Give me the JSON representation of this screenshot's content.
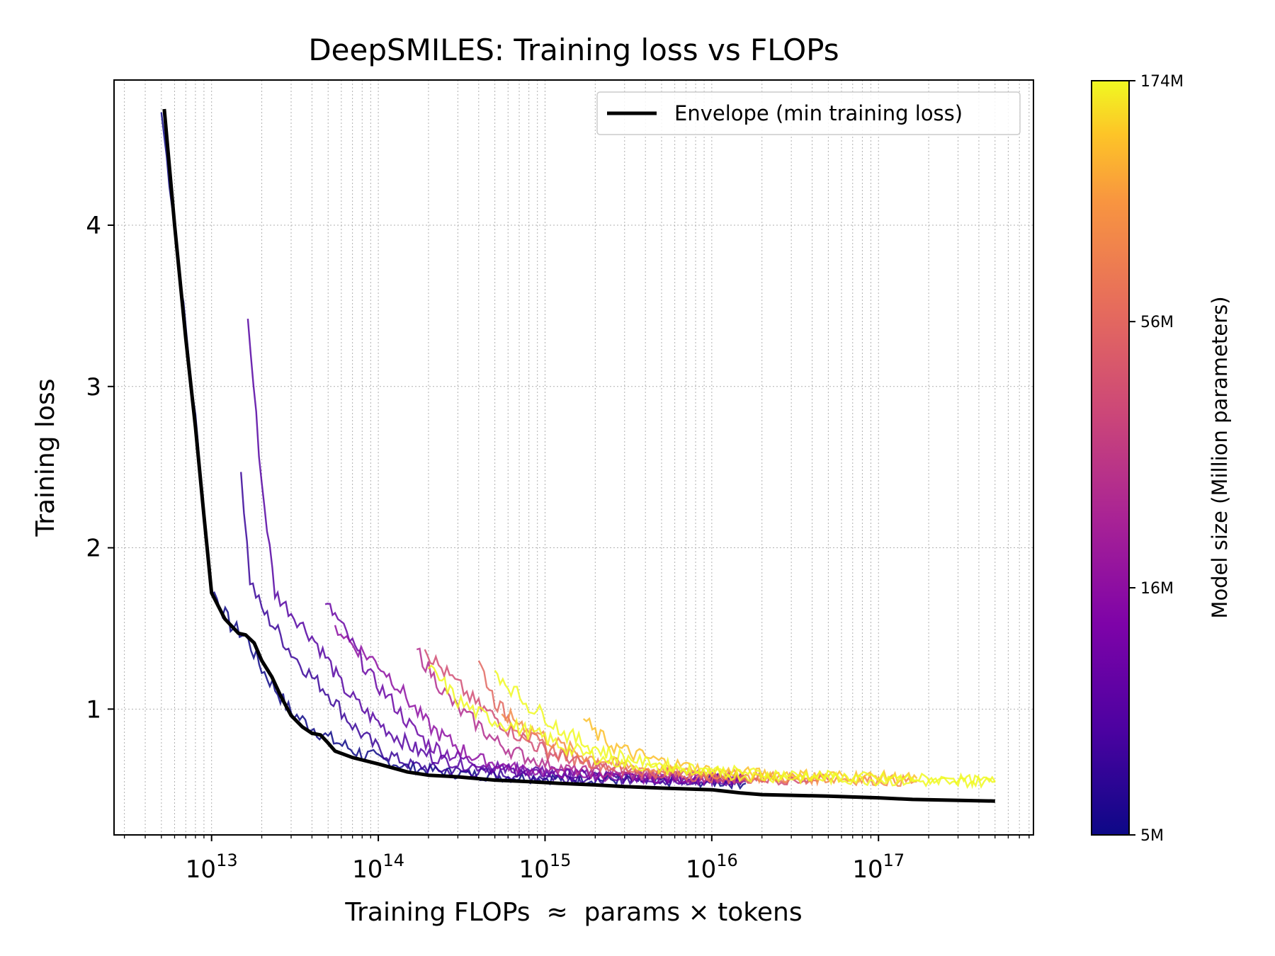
{
  "chart_data": {
    "type": "line",
    "title": "DeepSMILES: Training loss vs FLOPs",
    "xlabel": "Training FLOPs  ≈  params × tokens",
    "ylabel": "Training loss",
    "xscale": "log",
    "xlim": [
      2600000000000.0,
      8.5e+17
    ],
    "ylim": [
      0.22,
      4.9
    ],
    "x_ticks": [
      {
        "value": 10000000000000.0,
        "base": "10",
        "exp": "13"
      },
      {
        "value": 100000000000000.0,
        "base": "10",
        "exp": "14"
      },
      {
        "value": 1000000000000000.0,
        "base": "10",
        "exp": "15"
      },
      {
        "value": 1e+16,
        "base": "10",
        "exp": "16"
      },
      {
        "value": 1e+17,
        "base": "10",
        "exp": "17"
      }
    ],
    "y_ticks": [
      {
        "value": 1,
        "label": "1"
      },
      {
        "value": 2,
        "label": "2"
      },
      {
        "value": 3,
        "label": "3"
      },
      {
        "value": 4,
        "label": "4"
      }
    ],
    "grid": true,
    "legend": {
      "position": "top-right",
      "entries": [
        {
          "label": "Envelope (min training loss)",
          "color": "#000000"
        }
      ]
    },
    "colorbar": {
      "label": "Model size (Million parameters)",
      "colormap": "plasma",
      "scale": "log",
      "range": [
        5,
        174
      ],
      "ticks": [
        {
          "value": 5,
          "label": "5M"
        },
        {
          "value": 16,
          "label": "16M"
        },
        {
          "value": 56,
          "label": "56M"
        },
        {
          "value": 174,
          "label": "174M"
        }
      ]
    },
    "envelope": {
      "name": "Envelope (min training loss)",
      "color": "#000000",
      "x": [
        5200000000000.0,
        6000000000000.0,
        7000000000000.0,
        8000000000000.0,
        9000000000000.0,
        10000000000000.0,
        12000000000000.0,
        14500000000000.0,
        16000000000000.0,
        18000000000000.0,
        20000000000000.0,
        23000000000000.0,
        26000000000000.0,
        30000000000000.0,
        35000000000000.0,
        40000000000000.0,
        45000000000000.0,
        50000000000000.0,
        55000000000000.0,
        70000000000000.0,
        100000000000000.0,
        150000000000000.0,
        200000000000000.0,
        300000000000000.0,
        500000000000000.0,
        800000000000000.0,
        1200000000000000.0,
        2000000000000000.0,
        3000000000000000.0,
        5000000000000000.0,
        1e+16,
        1.5e+16,
        2e+16,
        5e+16,
        1e+17,
        1.6e+17,
        5e+17
      ],
      "y": [
        4.72,
        4.0,
        3.3,
        2.75,
        2.2,
        1.72,
        1.56,
        1.47,
        1.46,
        1.41,
        1.3,
        1.2,
        1.08,
        0.96,
        0.89,
        0.85,
        0.84,
        0.79,
        0.74,
        0.7,
        0.66,
        0.61,
        0.59,
        0.58,
        0.56,
        0.55,
        0.54,
        0.53,
        0.52,
        0.51,
        0.5,
        0.48,
        0.47,
        0.46,
        0.45,
        0.44,
        0.43
      ]
    },
    "series": [
      {
        "model_size_m": 5,
        "x": [
          5000000000000.0,
          6000000000000.0,
          8000000000000.0,
          10000000000000.0,
          13000000000000.0,
          16000000000000.0,
          20000000000000.0,
          30000000000000.0,
          50000000000000.0,
          80000000000000.0,
          150000000000000.0,
          300000000000000.0,
          600000000000000.0,
          1200000000000000.0,
          3000000000000000.0,
          6000000000000000.0,
          1e+16,
          1.6e+16
        ],
        "y": [
          4.7,
          4.0,
          2.8,
          1.75,
          1.52,
          1.45,
          1.25,
          0.98,
          0.82,
          0.72,
          0.64,
          0.6,
          0.58,
          0.57,
          0.56,
          0.55,
          0.55,
          0.54
        ]
      },
      {
        "model_size_m": 7,
        "x": [
          15000000000000.0,
          17000000000000.0,
          20000000000000.0,
          25000000000000.0,
          30000000000000.0,
          40000000000000.0,
          50000000000000.0,
          70000000000000.0,
          100000000000000.0,
          150000000000000.0,
          250000000000000.0,
          500000000000000.0,
          1000000000000000.0,
          3000000000000000.0,
          8000000000000000.0,
          1.6e+16
        ],
        "y": [
          2.47,
          1.8,
          1.62,
          1.48,
          1.35,
          1.2,
          1.1,
          0.9,
          0.75,
          0.66,
          0.62,
          0.6,
          0.58,
          0.57,
          0.56,
          0.55
        ]
      },
      {
        "model_size_m": 9,
        "x": [
          16500000000000.0,
          20000000000000.0,
          24000000000000.0,
          30000000000000.0,
          40000000000000.0,
          50000000000000.0,
          60000000000000.0,
          80000000000000.0,
          120000000000000.0,
          180000000000000.0,
          300000000000000.0,
          600000000000000.0,
          1500000000000000.0,
          4000000000000000.0,
          1.6e+16
        ],
        "y": [
          3.42,
          2.4,
          1.72,
          1.6,
          1.45,
          1.3,
          1.15,
          1.0,
          0.85,
          0.73,
          0.66,
          0.62,
          0.59,
          0.57,
          0.56
        ]
      },
      {
        "model_size_m": 11,
        "x": [
          48000000000000.0,
          55000000000000.0,
          70000000000000.0,
          90000000000000.0,
          120000000000000.0,
          160000000000000.0,
          200000000000000.0,
          300000000000000.0,
          500000000000000.0,
          1000000000000000.0,
          2000000000000000.0,
          5000000000000000.0,
          1.6e+16
        ],
        "y": [
          1.65,
          1.58,
          1.4,
          1.2,
          1.05,
          0.88,
          0.78,
          0.7,
          0.64,
          0.61,
          0.59,
          0.57,
          0.56
        ]
      },
      {
        "model_size_m": 16,
        "x": [
          55000000000000.0,
          70000000000000.0,
          100000000000000.0,
          130000000000000.0,
          160000000000000.0,
          200000000000000.0,
          250000000000000.0,
          350000000000000.0,
          500000000000000.0,
          800000000000000.0,
          1500000000000000.0,
          3000000000000000.0,
          8000000000000000.0,
          1.6e+16
        ],
        "y": [
          1.52,
          1.4,
          1.28,
          1.15,
          1.02,
          0.9,
          0.82,
          0.72,
          0.66,
          0.62,
          0.6,
          0.58,
          0.57,
          0.56
        ]
      },
      {
        "model_size_m": 25,
        "x": [
          170000000000000.0,
          200000000000000.0,
          250000000000000.0,
          300000000000000.0,
          400000000000000.0,
          500000000000000.0,
          700000000000000.0,
          1000000000000000.0,
          1500000000000000.0,
          3000000000000000.0,
          8000000000000000.0,
          1.6e+16
        ],
        "y": [
          1.37,
          1.25,
          1.1,
          1.0,
          0.9,
          0.8,
          0.72,
          0.66,
          0.62,
          0.59,
          0.58,
          0.57
        ]
      },
      {
        "model_size_m": 40,
        "x": [
          190000000000000.0,
          230000000000000.0,
          300000000000000.0,
          400000000000000.0,
          500000000000000.0,
          600000000000000.0,
          800000000000000.0,
          1000000000000000.0,
          1500000000000000.0,
          2500000000000000.0,
          5000000000000000.0,
          1e+16,
          2e+16,
          4e+16
        ],
        "y": [
          1.37,
          1.27,
          1.15,
          1.02,
          0.95,
          0.88,
          0.8,
          0.74,
          0.68,
          0.63,
          0.6,
          0.58,
          0.57,
          0.56
        ]
      },
      {
        "model_size_m": 56,
        "x": [
          400000000000000.0,
          500000000000000.0,
          600000000000000.0,
          800000000000000.0,
          1000000000000000.0,
          1500000000000000.0,
          2000000000000000.0,
          3000000000000000.0,
          5000000000000000.0,
          1e+16,
          2e+16,
          5e+16
        ],
        "y": [
          1.3,
          1.05,
          0.95,
          0.82,
          0.76,
          0.7,
          0.66,
          0.63,
          0.6,
          0.58,
          0.57,
          0.56
        ]
      },
      {
        "model_size_m": 85,
        "x": [
          550000000000000.0,
          700000000000000.0,
          900000000000000.0,
          1200000000000000.0,
          1600000000000000.0,
          2500000000000000.0,
          4000000000000000.0,
          8000000000000000.0,
          2e+16,
          5e+16,
          1e+17,
          1.7e+17
        ],
        "y": [
          0.97,
          0.92,
          0.85,
          0.78,
          0.72,
          0.67,
          0.63,
          0.6,
          0.58,
          0.57,
          0.56,
          0.55
        ]
      },
      {
        "model_size_m": 130,
        "x": [
          1700000000000000.0,
          2000000000000000.0,
          2500000000000000.0,
          3000000000000000.0,
          4000000000000000.0,
          6000000000000000.0,
          1e+16,
          2e+16,
          5e+16,
          1e+17,
          1.7e+17
        ],
        "y": [
          0.94,
          0.85,
          0.78,
          0.74,
          0.7,
          0.66,
          0.62,
          0.6,
          0.59,
          0.58,
          0.57
        ]
      },
      {
        "model_size_m": 174,
        "x": [
          200000000000000.0,
          250000000000000.0,
          300000000000000.0,
          400000000000000.0,
          500000000000000.0,
          700000000000000.0,
          1000000000000000.0,
          1500000000000000.0,
          2000000000000000.0,
          3000000000000000.0,
          5000000000000000.0,
          1e+16,
          2e+16,
          5e+16,
          1e+17,
          2e+17,
          5e+17
        ],
        "y": [
          1.25,
          1.15,
          1.05,
          0.97,
          0.93,
          0.88,
          0.82,
          0.74,
          0.7,
          0.66,
          0.63,
          0.6,
          0.58,
          0.57,
          0.56,
          0.55,
          0.55
        ]
      },
      {
        "model_size_m": 174,
        "x": [
          500000000000000.0,
          600000000000000.0,
          800000000000000.0,
          1000000000000000.0,
          1300000000000000.0,
          1800000000000000.0,
          2500000000000000.0,
          4000000000000000.0,
          8000000000000000.0,
          2e+16,
          6e+16,
          1.5e+17,
          3e+17,
          5e+17
        ],
        "y": [
          1.24,
          1.15,
          1.02,
          0.96,
          0.85,
          0.78,
          0.72,
          0.67,
          0.63,
          0.6,
          0.58,
          0.57,
          0.56,
          0.55
        ]
      }
    ]
  }
}
